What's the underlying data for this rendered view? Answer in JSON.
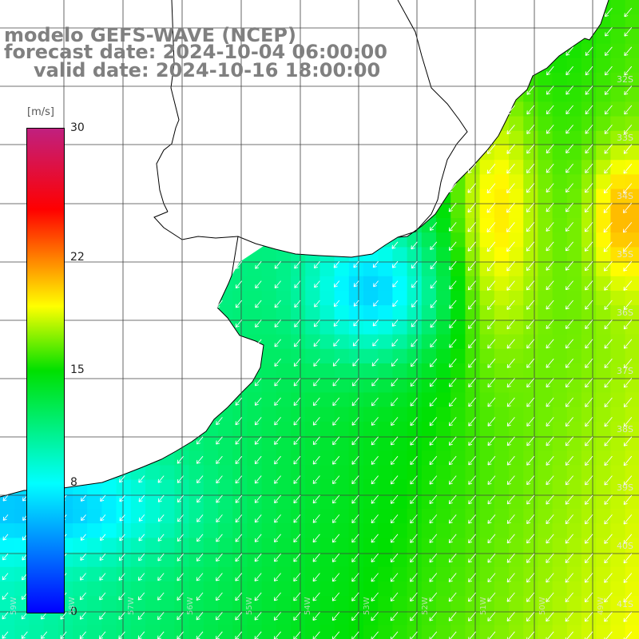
{
  "header": {
    "model": "modelo GEFS-WAVE (NCEP)",
    "forecast": "forecast date: 2024-10-04 06:00:00",
    "valid": "valid date: 2024-10-16 18:00:00"
  },
  "colorbar": {
    "unit_label": "[m/s]",
    "min": 0,
    "max": 30,
    "ticks": [
      "30",
      "22",
      "15",
      "8",
      "0"
    ],
    "tick_values": [
      30,
      22,
      15,
      8,
      0
    ],
    "stops": [
      {
        "value": 0,
        "color": "#0000ff"
      },
      {
        "value": 8,
        "color": "#00ffff"
      },
      {
        "value": 15,
        "color": "#00e000"
      },
      {
        "value": 19,
        "color": "#ffff00"
      },
      {
        "value": 22,
        "color": "#ff8000"
      },
      {
        "value": 25,
        "color": "#ff0000"
      },
      {
        "value": 30,
        "color": "#c0207f"
      }
    ]
  },
  "map": {
    "lon_range": [
      -59.5,
      -48.5
    ],
    "lat_range": [
      -41.5,
      -30.7
    ],
    "latitude_labels": [
      "32S",
      "33S",
      "34S",
      "35S",
      "36S",
      "37S",
      "38S",
      "39S",
      "40S",
      "41S"
    ],
    "longitude_labels": [
      "59W",
      "58W",
      "57W",
      "56W",
      "55W",
      "54W",
      "53W",
      "52W",
      "51W",
      "50W",
      "49W"
    ],
    "grid_color": "#404040",
    "land_color": "#ffffff",
    "coast_color": "#000000",
    "arrow_color": "#ffffff",
    "wind_direction": "from northeast toward southwest"
  }
}
